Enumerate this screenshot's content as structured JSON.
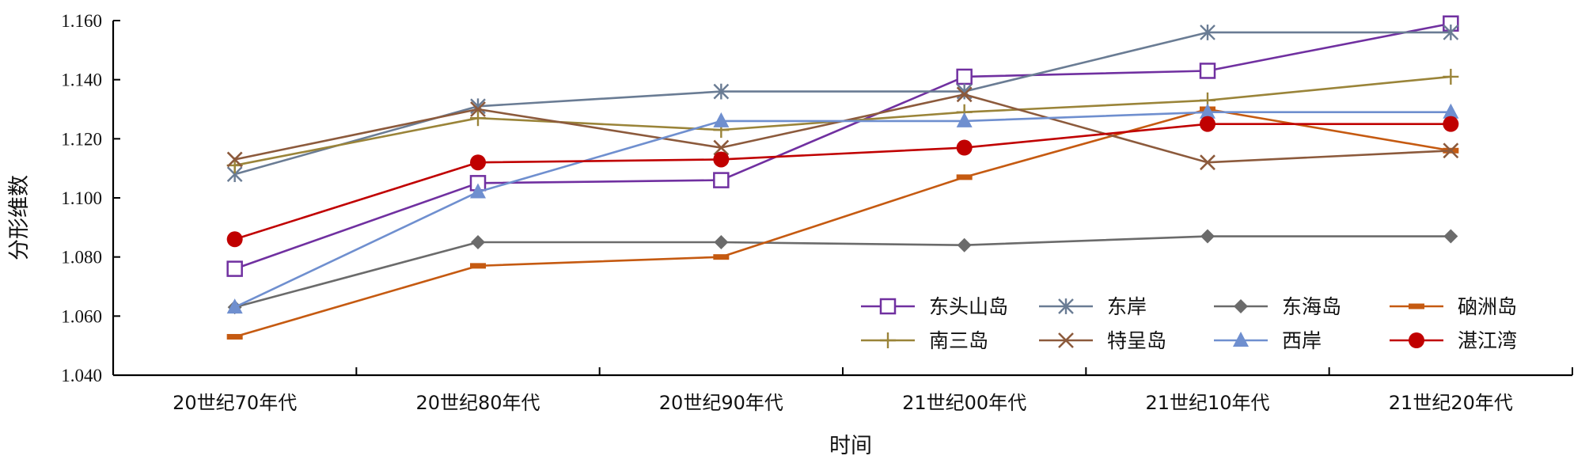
{
  "chart_data": {
    "type": "line",
    "title": "",
    "xlabel": "时间",
    "ylabel": "分形维数",
    "categories": [
      "20世纪70年代",
      "20世纪80年代",
      "20世纪90年代",
      "21世纪00年代",
      "21世纪10年代",
      "21世纪20年代"
    ],
    "ylim": [
      1.04,
      1.16
    ],
    "yticks": [
      "1.040",
      "1.060",
      "1.080",
      "1.100",
      "1.120",
      "1.140",
      "1.160"
    ],
    "grid": false,
    "legend_position": "bottom-right",
    "series": [
      {
        "name": "东头山岛",
        "color": "#7030A0",
        "marker": "square-open",
        "values": [
          1.076,
          1.105,
          1.106,
          1.141,
          1.143,
          1.159
        ]
      },
      {
        "name": "东岸",
        "color": "#6A7C94",
        "marker": "asterisk",
        "values": [
          1.108,
          1.131,
          1.136,
          1.136,
          1.156,
          1.156
        ]
      },
      {
        "name": "东海岛",
        "color": "#6B6B6B",
        "marker": "diamond",
        "values": [
          1.063,
          1.085,
          1.085,
          1.084,
          1.087,
          1.087
        ]
      },
      {
        "name": "硇洲岛",
        "color": "#C55A11",
        "marker": "dash",
        "values": [
          1.053,
          1.077,
          1.08,
          1.107,
          1.13,
          1.116
        ]
      },
      {
        "name": "南三岛",
        "color": "#9A8439",
        "marker": "plus",
        "values": [
          1.111,
          1.127,
          1.123,
          1.129,
          1.133,
          1.141
        ]
      },
      {
        "name": "特呈岛",
        "color": "#8C5A3C",
        "marker": "cross",
        "values": [
          1.113,
          1.13,
          1.117,
          1.135,
          1.112,
          1.116
        ]
      },
      {
        "name": "西岸",
        "color": "#6F8FCF",
        "marker": "triangle",
        "values": [
          1.063,
          1.102,
          1.126,
          1.126,
          1.129,
          1.129
        ]
      },
      {
        "name": "湛江湾",
        "color": "#C00000",
        "marker": "circle",
        "values": [
          1.086,
          1.112,
          1.113,
          1.117,
          1.125,
          1.125
        ]
      }
    ]
  }
}
